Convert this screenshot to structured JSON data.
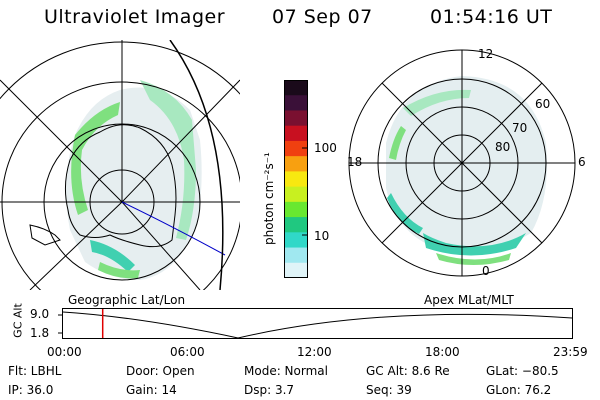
{
  "header": {
    "title": "Ultraviolet Imager",
    "date": "07 Sep 07",
    "time": "01:54:16 UT"
  },
  "colorbar": {
    "label": "photon cm⁻²s⁻¹",
    "tick_labels": [
      "100",
      "10"
    ],
    "colors": [
      "#1a0a1a",
      "#3a1038",
      "#7a1030",
      "#c81020",
      "#f04010",
      "#f8a010",
      "#f8e810",
      "#c8f020",
      "#68e830",
      "#20c880",
      "#30d8c8",
      "#a0e8f0",
      "#e0f4f8"
    ]
  },
  "left_panel": {
    "caption": "Geographic Lat/Lon"
  },
  "right_panel": {
    "caption": "Apex MLat/MLT",
    "mlt_labels": {
      "top": "12",
      "bottom": "0",
      "left": "18",
      "right": "6"
    },
    "lat_labels": [
      "60",
      "70",
      "80"
    ]
  },
  "altitude_strip": {
    "axis_label": "GC Alt",
    "ticks": [
      "9.0",
      "1.8"
    ],
    "time_labels": [
      "00:00",
      "06:00",
      "12:00",
      "18:00",
      "23:59"
    ],
    "current_time_fraction": 0.078
  },
  "info": {
    "filter": "Flt: LBHL",
    "door": "Door: Open",
    "mode": "Mode: Normal",
    "gc_alt": "GC Alt: 8.6 Re",
    "glat": "GLat: −80.5",
    "ip": "IP: 36.0",
    "gain": "Gain: 14",
    "dsp": "Dsp:    3.7",
    "seq": "Seq: 39",
    "glon": "GLon: 76.2"
  }
}
